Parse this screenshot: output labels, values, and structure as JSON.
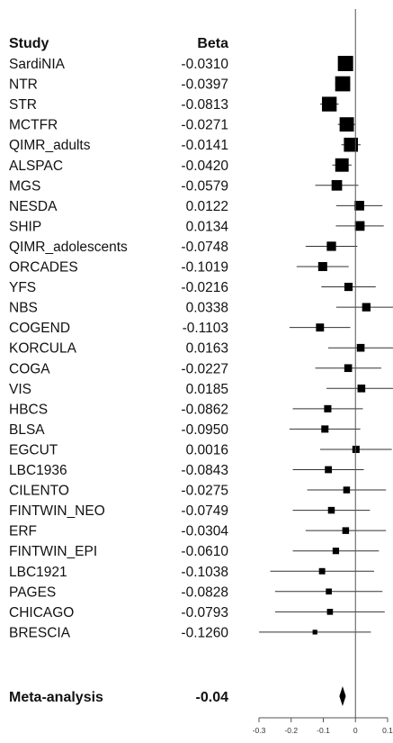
{
  "chart_data": {
    "type": "forest",
    "columns": {
      "study": "Study",
      "beta": "Beta"
    },
    "studies": [
      {
        "name": "SardiNIA",
        "beta_label": "-0.0310",
        "estimate": -0.031,
        "ci": [
          -0.052,
          -0.01
        ],
        "weight": 1.0
      },
      {
        "name": "NTR",
        "beta_label": "-0.0397",
        "estimate": -0.0397,
        "ci": [
          -0.063,
          -0.016
        ],
        "weight": 0.98
      },
      {
        "name": "STR",
        "beta_label": "-0.0813",
        "estimate": -0.0813,
        "ci": [
          -0.11,
          -0.052
        ],
        "weight": 0.95
      },
      {
        "name": "MCTFR",
        "beta_label": "-0.0271",
        "estimate": -0.0271,
        "ci": [
          -0.055,
          0.001
        ],
        "weight": 0.92
      },
      {
        "name": "QIMR_adults",
        "beta_label": "-0.0141",
        "estimate": -0.0141,
        "ci": [
          -0.044,
          0.016
        ],
        "weight": 0.9
      },
      {
        "name": "ALSPAC",
        "beta_label": "-0.0420",
        "estimate": -0.042,
        "ci": [
          -0.072,
          -0.012
        ],
        "weight": 0.85
      },
      {
        "name": "MGS",
        "beta_label": "-0.0579",
        "estimate": -0.0579,
        "ci": [
          -0.125,
          0.009
        ],
        "weight": 0.62
      },
      {
        "name": "NESDA",
        "beta_label": "0.0122",
        "estimate": 0.0122,
        "ci": [
          -0.06,
          0.084
        ],
        "weight": 0.55
      },
      {
        "name": "SHIP",
        "beta_label": "0.0134",
        "estimate": 0.0134,
        "ci": [
          -0.061,
          0.088
        ],
        "weight": 0.55
      },
      {
        "name": "QIMR_adolescents",
        "beta_label": "-0.0748",
        "estimate": -0.0748,
        "ci": [
          -0.155,
          0.006
        ],
        "weight": 0.52
      },
      {
        "name": "ORCADES",
        "beta_label": "-0.1019",
        "estimate": -0.1019,
        "ci": [
          -0.183,
          -0.021
        ],
        "weight": 0.5
      },
      {
        "name": "YFS",
        "beta_label": "-0.0216",
        "estimate": -0.0216,
        "ci": [
          -0.106,
          0.063
        ],
        "weight": 0.44
      },
      {
        "name": "NBS",
        "beta_label": "0.0338",
        "estimate": 0.0338,
        "ci": [
          -0.06,
          0.128
        ],
        "weight": 0.45
      },
      {
        "name": "COGEND",
        "beta_label": "-0.1103",
        "estimate": -0.1103,
        "ci": [
          -0.205,
          -0.016
        ],
        "weight": 0.42
      },
      {
        "name": "KORCULA",
        "beta_label": "0.0163",
        "estimate": 0.0163,
        "ci": [
          -0.085,
          0.118
        ],
        "weight": 0.4
      },
      {
        "name": "COGA",
        "beta_label": "-0.0227",
        "estimate": -0.0227,
        "ci": [
          -0.125,
          0.08
        ],
        "weight": 0.4
      },
      {
        "name": "VIS",
        "beta_label": "0.0185",
        "estimate": 0.0185,
        "ci": [
          -0.09,
          0.127
        ],
        "weight": 0.4
      },
      {
        "name": "HBCS",
        "beta_label": "-0.0862",
        "estimate": -0.0862,
        "ci": [
          -0.195,
          0.023
        ],
        "weight": 0.36
      },
      {
        "name": "BLSA",
        "beta_label": "-0.0950",
        "estimate": -0.095,
        "ci": [
          -0.205,
          0.015
        ],
        "weight": 0.36
      },
      {
        "name": "EGCUT",
        "beta_label": "0.0016",
        "estimate": 0.0016,
        "ci": [
          -0.11,
          0.113
        ],
        "weight": 0.36
      },
      {
        "name": "LBC1936",
        "beta_label": "-0.0843",
        "estimate": -0.0843,
        "ci": [
          -0.195,
          0.026
        ],
        "weight": 0.34
      },
      {
        "name": "CILENTO",
        "beta_label": "-0.0275",
        "estimate": -0.0275,
        "ci": [
          -0.15,
          0.095
        ],
        "weight": 0.32
      },
      {
        "name": "FINTWIN_NEO",
        "beta_label": "-0.0749",
        "estimate": -0.0749,
        "ci": [
          -0.195,
          0.045
        ],
        "weight": 0.32
      },
      {
        "name": "ERF",
        "beta_label": "-0.0304",
        "estimate": -0.0304,
        "ci": [
          -0.155,
          0.095
        ],
        "weight": 0.32
      },
      {
        "name": "FINTWIN_EPI",
        "beta_label": "-0.0610",
        "estimate": -0.061,
        "ci": [
          -0.195,
          0.073
        ],
        "weight": 0.3
      },
      {
        "name": "LBC1921",
        "beta_label": "-0.1038",
        "estimate": -0.1038,
        "ci": [
          -0.265,
          0.058
        ],
        "weight": 0.28
      },
      {
        "name": "PAGES",
        "beta_label": "-0.0828",
        "estimate": -0.0828,
        "ci": [
          -0.25,
          0.084
        ],
        "weight": 0.26
      },
      {
        "name": "CHICAGO",
        "beta_label": "-0.0793",
        "estimate": -0.0793,
        "ci": [
          -0.25,
          0.091
        ],
        "weight": 0.26
      },
      {
        "name": "BRESCIA",
        "beta_label": "-0.1260",
        "estimate": -0.126,
        "ci": [
          -0.3,
          0.048
        ],
        "weight": 0.16
      }
    ],
    "summary": {
      "name": "Meta-analysis",
      "beta_label": "-0.04",
      "estimate": -0.04,
      "ci": [
        -0.05,
        -0.03
      ]
    },
    "x_ticks": [
      -0.3,
      -0.2,
      -0.1,
      0,
      0.1
    ],
    "x_tick_labels": [
      "-0.3",
      "-0.2",
      "-0.1",
      "0",
      "0.1"
    ],
    "xlim": [
      -0.3,
      0.1
    ],
    "reference_line": 0,
    "grid": false,
    "colors": {
      "marker": "#000000",
      "line": "#333333",
      "text": "#111111"
    }
  }
}
